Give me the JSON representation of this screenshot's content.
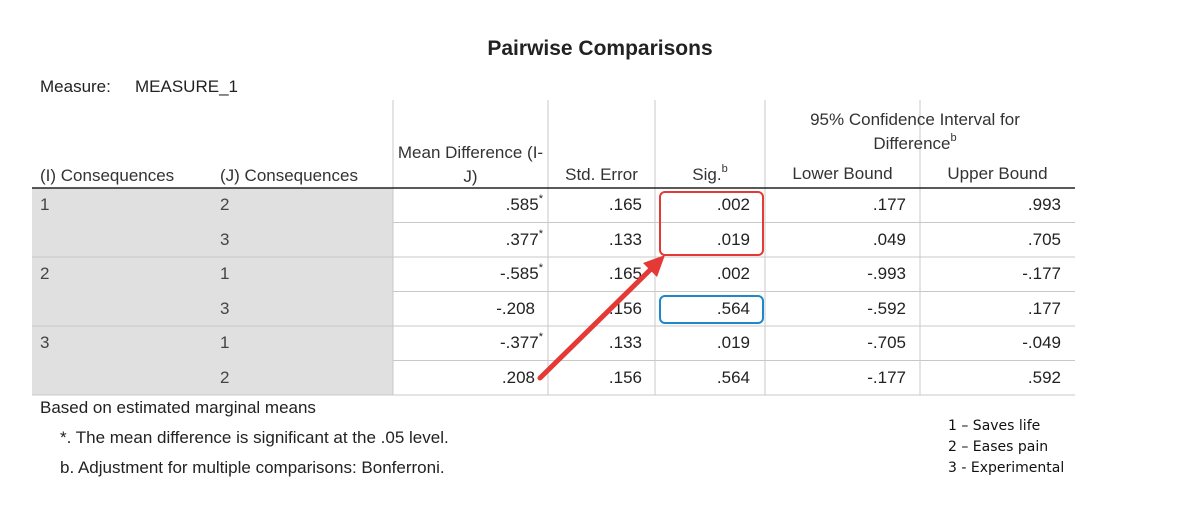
{
  "title": "Pairwise Comparisons",
  "measure": {
    "label": "Measure:",
    "value": "MEASURE_1"
  },
  "table": {
    "headers": {
      "i": "(I) Consequences",
      "j": "(J) Consequences",
      "mean_difference": "Mean Difference (I-J)",
      "std_error": "Std. Error",
      "sig": "Sig.",
      "sig_note": "b",
      "ci": "95% Confidence Interval for Difference",
      "ci_note": "b",
      "lower": "Lower Bound",
      "upper": "Upper Bound"
    },
    "groups": [
      {
        "i": "1",
        "rows": [
          {
            "j": "2",
            "mean_difference": ".585",
            "mark": "*",
            "std_error": ".165",
            "sig": ".002",
            "lower": ".177",
            "upper": ".993"
          },
          {
            "j": "3",
            "mean_difference": ".377",
            "mark": "*",
            "std_error": ".133",
            "sig": ".019",
            "lower": ".049",
            "upper": ".705"
          }
        ]
      },
      {
        "i": "2",
        "rows": [
          {
            "j": "1",
            "mean_difference": "-.585",
            "mark": "*",
            "std_error": ".165",
            "sig": ".002",
            "lower": "-.993",
            "upper": "-.177"
          },
          {
            "j": "3",
            "mean_difference": "-.208",
            "std_error": ".156",
            "sig": ".564",
            "lower": "-.592",
            "upper": ".177"
          }
        ]
      },
      {
        "i": "3",
        "rows": [
          {
            "j": "1",
            "mean_difference": "-.377",
            "mark": "*",
            "std_error": ".133",
            "sig": ".019",
            "lower": "-.705",
            "upper": "-.049"
          },
          {
            "j": "2",
            "mean_difference": ".208",
            "std_error": ".156",
            "sig": ".564",
            "lower": "-.177",
            "upper": ".592"
          }
        ]
      }
    ]
  },
  "footnotes": [
    "Based on estimated marginal means",
    "*. The mean difference is significant at the .05 level.",
    "b. Adjustment for multiple comparisons: Bonferroni."
  ],
  "legend": [
    "1 – Saves life",
    "2 – Eases pain",
    "3 - Experimental"
  ]
}
